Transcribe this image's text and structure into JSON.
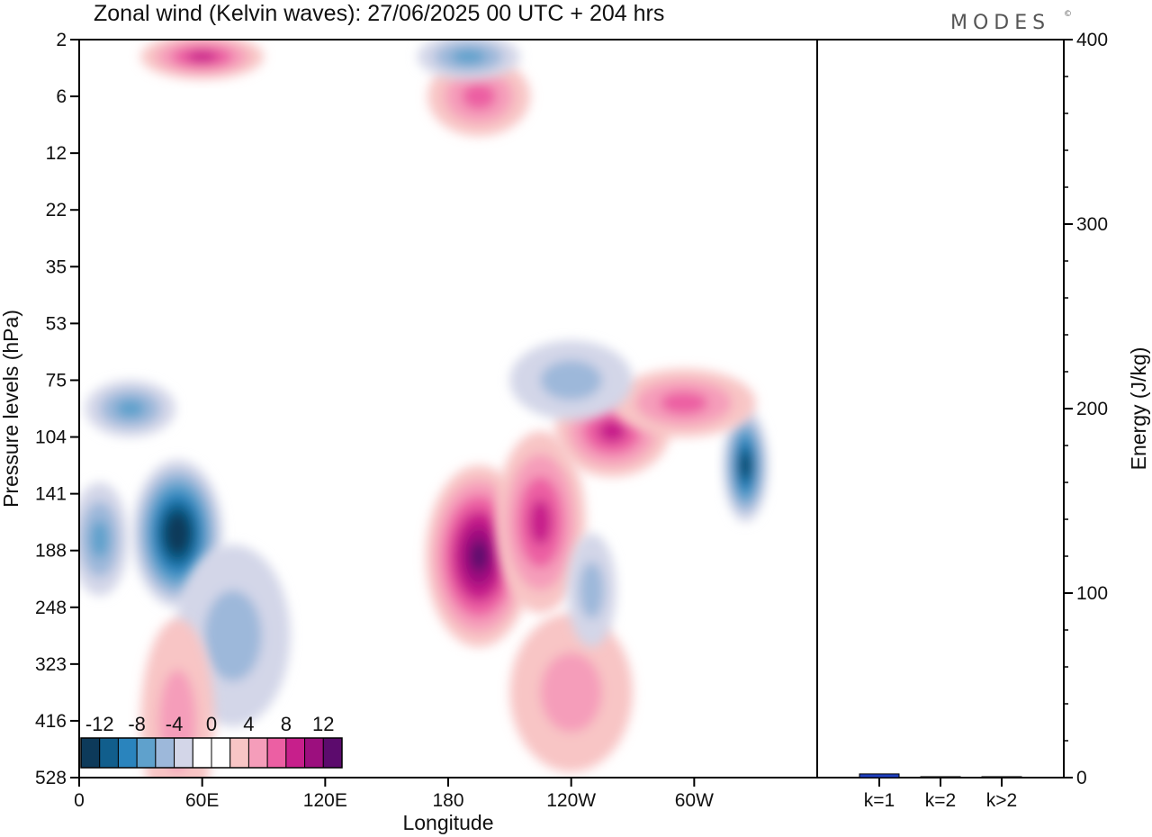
{
  "chart_data": [
    {
      "type": "heatmap",
      "title": "Zonal wind (Kelvin waves):  27/06/2025  00 UTC  + 204 hrs",
      "xlabel": "Longitude",
      "ylabel": "Pressure levels (hPa)",
      "x_ticks": [
        "0",
        "60E",
        "120E",
        "180",
        "120W",
        "60W"
      ],
      "x_range_deg": [
        0,
        360
      ],
      "x_tick_deg": [
        0,
        60,
        120,
        180,
        240,
        300
      ],
      "y_ticks": [
        "2",
        "6",
        "12",
        "22",
        "35",
        "53",
        "75",
        "104",
        "141",
        "188",
        "248",
        "323",
        "416",
        "528"
      ],
      "colorbar": {
        "labels": [
          "-12",
          "-8",
          "-4",
          "0",
          "4",
          "8",
          "12"
        ],
        "colors": [
          "#0d3a5a",
          "#115e8c",
          "#2a84bd",
          "#5fa1cc",
          "#9db8da",
          "#d3d6e8",
          "#ffffff",
          "#ffffff",
          "#f8c5c5",
          "#f59dba",
          "#ec5fa3",
          "#c71f8b",
          "#9c0f7e",
          "#5c0b6d"
        ]
      },
      "features": [
        {
          "lon": 48,
          "level_index": 8.7,
          "value": -13,
          "rx_deg": 22,
          "ry_levels": 1.3
        },
        {
          "lon": 325,
          "level_index": 7.5,
          "value": -11,
          "rx_deg": 11,
          "ry_levels": 1.0
        },
        {
          "lon": 10,
          "level_index": 8.8,
          "value": -6,
          "rx_deg": 14,
          "ry_levels": 1.0
        },
        {
          "lon": 25,
          "level_index": 6.5,
          "value": -5,
          "rx_deg": 22,
          "ry_levels": 0.5
        },
        {
          "lon": 75,
          "level_index": 10.5,
          "value": -4,
          "rx_deg": 28,
          "ry_levels": 1.6
        },
        {
          "lon": 195,
          "level_index": 9.1,
          "value": 11,
          "rx_deg": 26,
          "ry_levels": 1.6
        },
        {
          "lon": 225,
          "level_index": 8.5,
          "value": 7,
          "rx_deg": 22,
          "ry_levels": 1.6
        },
        {
          "lon": 260,
          "level_index": 6.9,
          "value": 7,
          "rx_deg": 28,
          "ry_levels": 0.8
        },
        {
          "lon": 295,
          "level_index": 6.4,
          "value": 5,
          "rx_deg": 35,
          "ry_levels": 0.6
        },
        {
          "lon": 240,
          "level_index": 11.5,
          "value": 4,
          "rx_deg": 30,
          "ry_levels": 1.4
        },
        {
          "lon": 48,
          "level_index": 12,
          "value": 4,
          "rx_deg": 18,
          "ry_levels": 1.8
        },
        {
          "lon": 195,
          "level_index": 1.0,
          "value": 5,
          "rx_deg": 25,
          "ry_levels": 0.7
        },
        {
          "lon": 60,
          "level_index": 0.3,
          "value": 7,
          "rx_deg": 30,
          "ry_levels": 0.4
        },
        {
          "lon": 190,
          "level_index": 0.3,
          "value": -5,
          "rx_deg": 25,
          "ry_levels": 0.4
        },
        {
          "lon": 240,
          "level_index": 6.0,
          "value": -4,
          "rx_deg": 30,
          "ry_levels": 0.7
        },
        {
          "lon": 250,
          "level_index": 9.7,
          "value": -4,
          "rx_deg": 12,
          "ry_levels": 1.0
        }
      ]
    },
    {
      "type": "bar",
      "categories": [
        "k=1",
        "k=2",
        "k>2"
      ],
      "values": [
        2,
        0.5,
        0.5
      ],
      "ylabel": "Energy (J/kg)",
      "ylim": [
        0,
        400
      ],
      "y_ticks": [
        "0",
        "100",
        "200",
        "300",
        "400"
      ],
      "bar_color": "#1f3fbf"
    }
  ],
  "logo_text": "MODES",
  "logo_mark": "©"
}
